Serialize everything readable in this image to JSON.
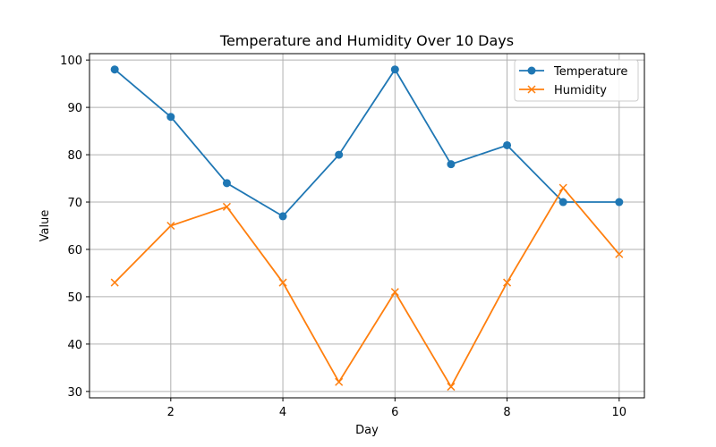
{
  "chart_data": {
    "type": "line",
    "title": "Temperature and Humidity Over 10 Days",
    "xlabel": "Day",
    "ylabel": "Value",
    "x": [
      1,
      2,
      3,
      4,
      5,
      6,
      7,
      8,
      9,
      10
    ],
    "xlim": [
      0.55,
      10.45
    ],
    "ylim": [
      28.65,
      101.35
    ],
    "xticks": [
      2,
      4,
      6,
      8,
      10
    ],
    "yticks": [
      30,
      40,
      50,
      60,
      70,
      80,
      90,
      100
    ],
    "grid": true,
    "legend_position": "top-right",
    "series": [
      {
        "name": "Temperature",
        "color": "#1f77b4",
        "marker": "circle",
        "values": [
          98,
          88,
          74,
          67,
          80,
          98,
          78,
          82,
          70,
          70
        ]
      },
      {
        "name": "Humidity",
        "color": "#ff7f0e",
        "marker": "x",
        "values": [
          53,
          65,
          69,
          53,
          32,
          51,
          31,
          53,
          73,
          59
        ]
      }
    ]
  }
}
